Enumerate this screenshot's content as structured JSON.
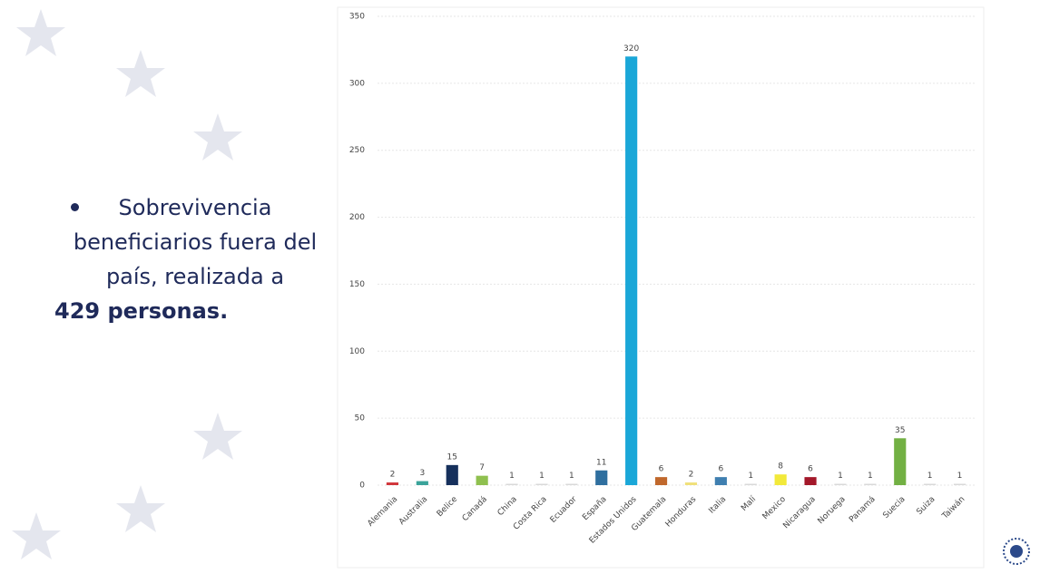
{
  "slide": {
    "text": "Sobrevivencia beneficiarios fuera del país, realizada a",
    "emphasis": "429 personas."
  },
  "chart_data": {
    "type": "bar",
    "categories": [
      "Alemania",
      "Australia",
      "Belice",
      "Canadá",
      "China",
      "Costa Rica",
      "Ecuador",
      "España",
      "Estados Unidos",
      "Guatemala",
      "Honduras",
      "Italia",
      "Malí",
      "Mexico",
      "Nicaragua",
      "Noruega",
      "Panamá",
      "Suecia",
      "Suiza",
      "Taiwán"
    ],
    "values": [
      2,
      3,
      15,
      7,
      1,
      1,
      1,
      11,
      320,
      6,
      2,
      6,
      1,
      8,
      6,
      1,
      1,
      35,
      1,
      1
    ],
    "colors": [
      "#d1353b",
      "#3aa39a",
      "#16305c",
      "#8fc04f",
      "#d9d9d9",
      "#d9d9d9",
      "#d9d9d9",
      "#2f6f9f",
      "#1aa7d8",
      "#c0682c",
      "#f0e07a",
      "#3f7fb0",
      "#d9d9d9",
      "#f2e93a",
      "#a3182a",
      "#d9d9d9",
      "#d9d9d9",
      "#72b043",
      "#d9d9d9",
      "#d9d9d9"
    ],
    "ylim": [
      0,
      350
    ],
    "yticks": [
      0,
      50,
      100,
      150,
      200,
      250,
      300,
      350
    ],
    "grid": true
  }
}
